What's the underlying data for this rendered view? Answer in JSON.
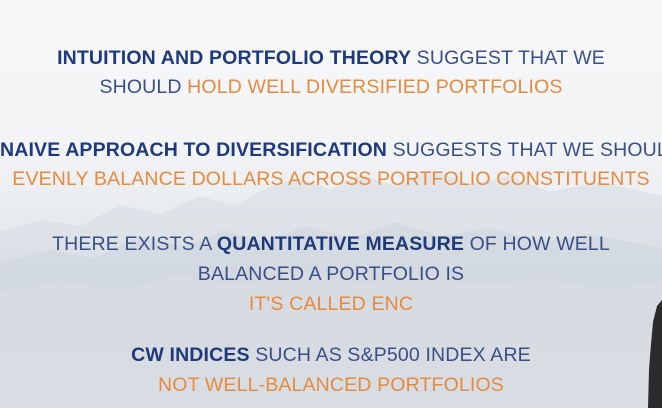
{
  "slide": {
    "block1": {
      "line1_bold": "INTUITION AND PORTFOLIO THEORY",
      "line1_rest": " SUGGEST THAT WE",
      "line2_pre": "SHOULD ",
      "line2_orange": "HOLD WELL DIVERSIFIED PORTFOLIOS"
    },
    "block2": {
      "line1_bold": "NAIVE APPROACH TO DIVERSIFICATION",
      "line1_rest": " SUGGESTS THAT WE SHOULD",
      "line2_orange": "EVENLY BALANCE DOLLARS ACROSS PORTFOLIO CONSTITUENTS"
    },
    "block3": {
      "line1_pre": "THERE EXISTS A ",
      "line1_bold": "QUANTITATIVE MEASURE",
      "line1_rest": " OF HOW WELL",
      "line2": "BALANCED A PORTFOLIO IS",
      "line3_orange": "IT'S CALLED ENC"
    },
    "block4": {
      "line1_bold": "CW INDICES",
      "line1_rest": " SUCH AS S&P500 INDEX ARE",
      "line2_orange": "NOT WELL-BALANCED PORTFOLIOS"
    }
  },
  "colors": {
    "heading_navy": "#1f3a7a",
    "text_navy": "#3a4f86",
    "accent_orange": "#e88a3e"
  }
}
